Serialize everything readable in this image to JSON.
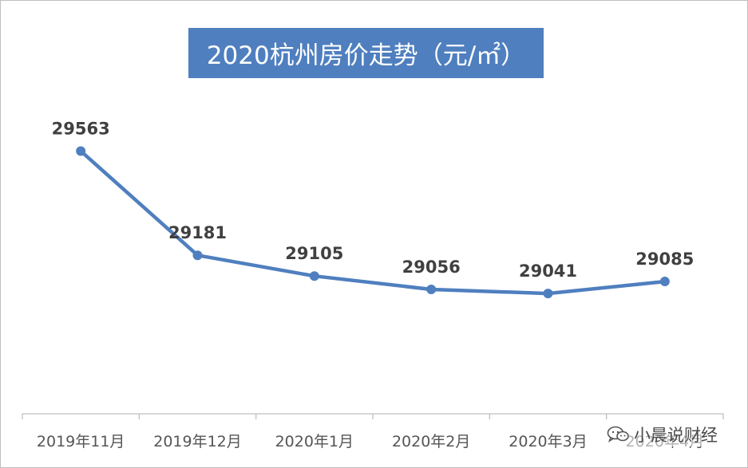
{
  "chart_data": {
    "type": "line",
    "title": "2020杭州房价走势（元/㎡）",
    "categories": [
      "2019年11月",
      "2019年12月",
      "2020年1月",
      "2020年2月",
      "2020年3月",
      "2020年4月"
    ],
    "series": [
      {
        "values": [
          29563,
          29181,
          29105,
          29056,
          29041,
          29085
        ]
      }
    ],
    "data_labels": [
      "29563",
      "29181",
      "29105",
      "29056",
      "29041",
      "29085"
    ],
    "ylim": [
      28600,
      29620
    ],
    "grid": false,
    "legend": "none",
    "colors": {
      "line": "#4f7fbf",
      "title_bg": "#4f7fbf",
      "axis": "#bfbfbf",
      "label": "#404040"
    }
  },
  "watermark": {
    "text": "小晨说财经",
    "icon": "wechat-icon"
  }
}
